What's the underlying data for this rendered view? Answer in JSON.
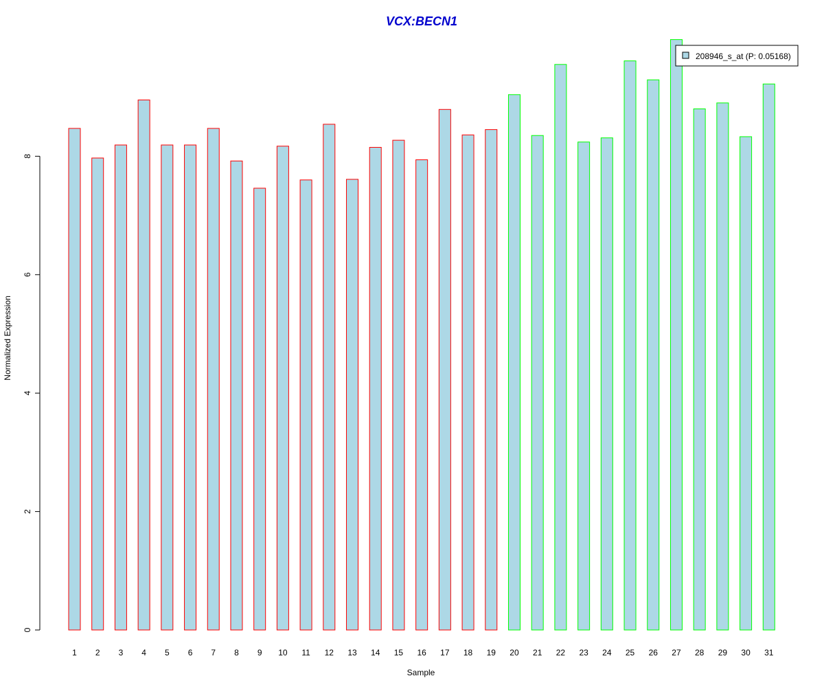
{
  "chart_data": {
    "type": "bar",
    "title": "VCX:BECN1",
    "xlabel": "Sample",
    "ylabel": "Normalized Expression",
    "categories": [
      "1",
      "2",
      "3",
      "4",
      "5",
      "6",
      "7",
      "8",
      "9",
      "10",
      "11",
      "12",
      "13",
      "14",
      "15",
      "16",
      "17",
      "18",
      "19",
      "20",
      "21",
      "22",
      "23",
      "24",
      "25",
      "26",
      "27",
      "28",
      "29",
      "30",
      "31"
    ],
    "series": [
      {
        "name": "208946_s_at (P: 0.05168)",
        "values": [
          8.47,
          7.97,
          8.19,
          8.95,
          8.19,
          8.19,
          8.47,
          7.92,
          7.46,
          8.17,
          7.6,
          8.54,
          7.61,
          8.15,
          8.27,
          7.94,
          8.79,
          8.36,
          8.45,
          9.04,
          8.35,
          9.55,
          8.24,
          8.31,
          9.61,
          9.29,
          9.97,
          8.8,
          8.9,
          8.33,
          9.22
        ]
      }
    ],
    "groups": [
      1,
      1,
      1,
      1,
      1,
      1,
      1,
      1,
      1,
      1,
      1,
      1,
      1,
      1,
      1,
      1,
      1,
      1,
      1,
      2,
      2,
      2,
      2,
      2,
      2,
      2,
      2,
      2,
      2,
      2,
      2
    ],
    "yticks": [
      0,
      2,
      4,
      6,
      8
    ],
    "ylim": [
      0,
      10
    ],
    "grid": false,
    "legend_position": "top-right"
  },
  "colors": {
    "bar_fill": "#add8e6",
    "group1_border": "#ff0000",
    "group2_border": "#00ff00",
    "title": "#0000cd",
    "axis": "#000000"
  }
}
